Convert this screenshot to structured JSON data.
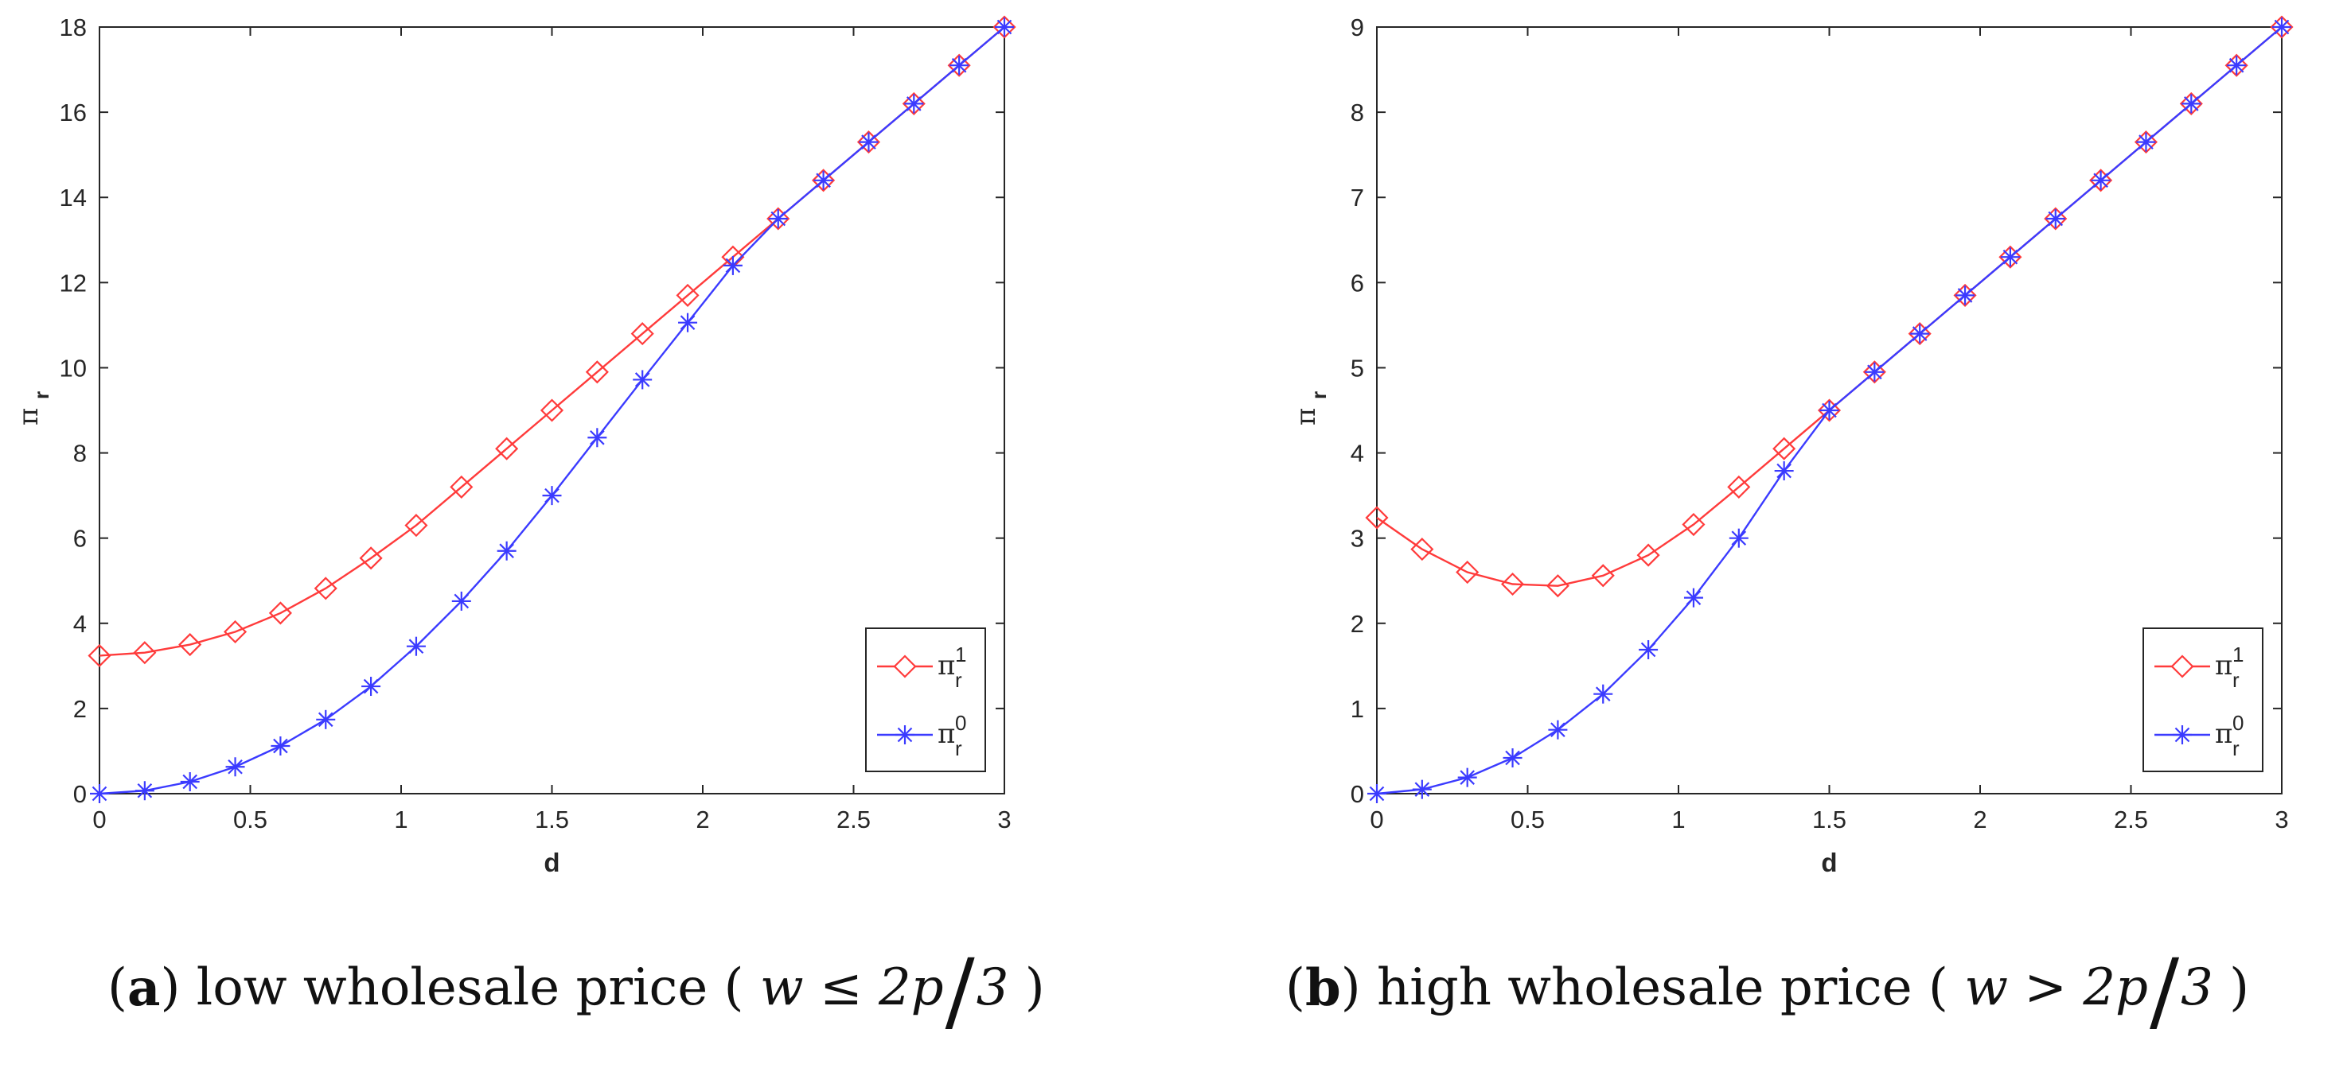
{
  "chart_data": [
    {
      "type": "line",
      "panel_label": "a",
      "caption": "low wholesale price",
      "caption_math": [
        "w ≤ 2p",
        "3"
      ],
      "xlabel": "d",
      "ylabel_symbol": "π",
      "ylabel_subscript": "r",
      "xlim": [
        0,
        3
      ],
      "ylim": [
        0,
        18
      ],
      "xticks": [
        "0",
        "0.5",
        "1",
        "1.5",
        "2",
        "2.5",
        "3"
      ],
      "xtick_values": [
        0,
        0.5,
        1,
        1.5,
        2,
        2.5,
        3
      ],
      "yticks": [
        "0",
        "2",
        "4",
        "6",
        "8",
        "10",
        "12",
        "14",
        "16",
        "18"
      ],
      "ytick_values": [
        0,
        2,
        4,
        6,
        8,
        10,
        12,
        14,
        16,
        18
      ],
      "legend_position": "bottom-right",
      "x": [
        0,
        0.15,
        0.3,
        0.45,
        0.6,
        0.75,
        0.9,
        1.05,
        1.2,
        1.35,
        1.5,
        1.65,
        1.8,
        1.95,
        2.1,
        2.25,
        2.4,
        2.55,
        2.7,
        2.85,
        3.0
      ],
      "series": [
        {
          "name": "π_r^1",
          "symbol": "π",
          "sub": "r",
          "sup": "1",
          "color": "#ff3b3b",
          "marker": "diamond",
          "values": [
            3.24,
            3.31,
            3.5,
            3.8,
            4.24,
            4.82,
            5.53,
            6.3,
            7.2,
            8.1,
            9.0,
            9.9,
            10.8,
            11.7,
            12.6,
            13.5,
            14.4,
            15.3,
            16.2,
            17.1,
            18.0
          ]
        },
        {
          "name": "π_r^0",
          "symbol": "π",
          "sub": "r",
          "sup": "0",
          "color": "#3b3bff",
          "marker": "asterisk",
          "values": [
            0,
            0.07,
            0.28,
            0.63,
            1.12,
            1.74,
            2.52,
            3.46,
            4.52,
            5.7,
            7.0,
            8.36,
            9.72,
            11.06,
            12.4,
            13.5,
            14.4,
            15.3,
            16.2,
            17.1,
            18.0
          ]
        }
      ]
    },
    {
      "type": "line",
      "panel_label": "b",
      "caption": "high wholesale price",
      "caption_math": [
        "w > 2p",
        "3"
      ],
      "xlabel": "d",
      "ylabel_symbol": "π",
      "ylabel_subscript": "r",
      "xlim": [
        0,
        3
      ],
      "ylim": [
        0,
        9
      ],
      "xticks": [
        "0",
        "0.5",
        "1",
        "1.5",
        "2",
        "2.5",
        "3"
      ],
      "xtick_values": [
        0,
        0.5,
        1,
        1.5,
        2,
        2.5,
        3
      ],
      "yticks": [
        "0",
        "1",
        "2",
        "3",
        "4",
        "5",
        "6",
        "7",
        "8",
        "9"
      ],
      "ytick_values": [
        0,
        1,
        2,
        3,
        4,
        5,
        6,
        7,
        8,
        9
      ],
      "legend_position": "bottom-right",
      "x": [
        0,
        0.15,
        0.3,
        0.45,
        0.6,
        0.75,
        0.9,
        1.05,
        1.2,
        1.35,
        1.5,
        1.65,
        1.8,
        1.95,
        2.1,
        2.25,
        2.4,
        2.55,
        2.7,
        2.85,
        3.0
      ],
      "series": [
        {
          "name": "π_r^1",
          "symbol": "π",
          "sub": "r",
          "sup": "1",
          "color": "#ff3b3b",
          "marker": "diamond",
          "values": [
            3.24,
            2.87,
            2.6,
            2.46,
            2.44,
            2.56,
            2.8,
            3.16,
            3.6,
            4.05,
            4.5,
            4.95,
            5.4,
            5.85,
            6.3,
            6.75,
            7.2,
            7.65,
            8.1,
            8.55,
            9.0
          ]
        },
        {
          "name": "π_r^0",
          "symbol": "π",
          "sub": "r",
          "sup": "0",
          "color": "#3b3bff",
          "marker": "asterisk",
          "values": [
            0,
            0.05,
            0.19,
            0.42,
            0.75,
            1.17,
            1.69,
            2.3,
            3.0,
            3.79,
            4.5,
            4.95,
            5.4,
            5.85,
            6.3,
            6.75,
            7.2,
            7.65,
            8.1,
            8.55,
            9.0
          ]
        }
      ]
    }
  ]
}
